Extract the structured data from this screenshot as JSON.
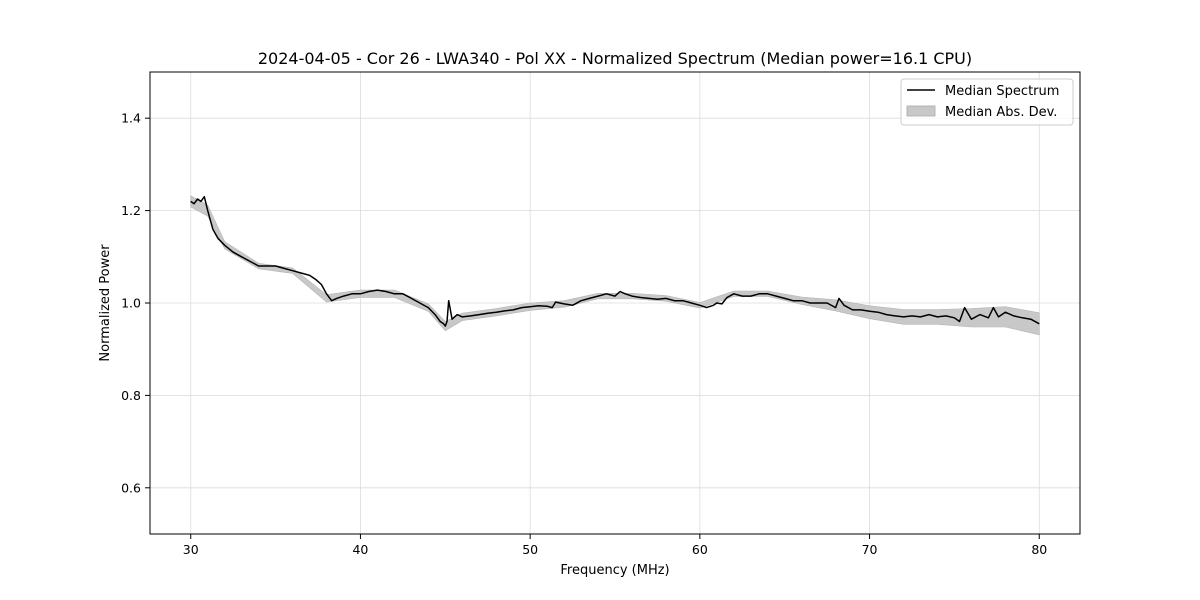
{
  "chart_data": {
    "type": "line",
    "title": "2024-04-05 - Cor 26 - LWA340 - Pol XX - Normalized Spectrum (Median power=16.1 CPU)",
    "xlabel": "Frequency (MHz)",
    "ylabel": "Normalized Power",
    "xlim": [
      27.6,
      82.4
    ],
    "ylim": [
      0.5,
      1.5
    ],
    "xticks": [
      30,
      40,
      50,
      60,
      70,
      80
    ],
    "xtick_labels": [
      "30",
      "40",
      "50",
      "60",
      "70",
      "80"
    ],
    "yticks": [
      0.6,
      0.8,
      1.0,
      1.2,
      1.4
    ],
    "ytick_labels": [
      "0.6",
      "0.8",
      "1.0",
      "1.2",
      "1.4"
    ],
    "grid": true,
    "legend_position": "top-right",
    "series": [
      {
        "name": "Median Spectrum",
        "kind": "line",
        "color": "#000000",
        "x": [
          30.0,
          30.2,
          30.4,
          30.6,
          30.8,
          31.0,
          31.3,
          31.6,
          32.0,
          32.5,
          33.0,
          33.5,
          34.0,
          34.5,
          35.0,
          35.5,
          36.0,
          36.5,
          37.0,
          37.4,
          37.7,
          38.0,
          38.3,
          38.6,
          39.0,
          39.5,
          40.0,
          40.5,
          41.0,
          41.5,
          42.0,
          42.5,
          43.0,
          43.5,
          44.0,
          44.4,
          44.7,
          44.9,
          45.0,
          45.1,
          45.2,
          45.4,
          45.7,
          46.0,
          46.5,
          47.0,
          47.5,
          48.0,
          48.5,
          49.0,
          49.5,
          50.0,
          50.5,
          51.0,
          51.3,
          51.5,
          52.0,
          52.5,
          53.0,
          53.5,
          54.0,
          54.5,
          55.0,
          55.3,
          55.6,
          56.0,
          56.5,
          57.0,
          57.5,
          58.0,
          58.5,
          59.0,
          59.5,
          60.0,
          60.4,
          60.8,
          61.0,
          61.3,
          61.6,
          62.0,
          62.5,
          63.0,
          63.5,
          64.0,
          64.5,
          65.0,
          65.5,
          66.0,
          66.5,
          67.0,
          67.5,
          68.0,
          68.2,
          68.5,
          69.0,
          69.5,
          70.0,
          70.5,
          71.0,
          71.5,
          72.0,
          72.5,
          73.0,
          73.5,
          74.0,
          74.5,
          75.0,
          75.3,
          75.6,
          76.0,
          76.5,
          77.0,
          77.3,
          77.6,
          78.0,
          78.5,
          79.0,
          79.5,
          80.0
        ],
        "y": [
          1.22,
          1.215,
          1.225,
          1.22,
          1.23,
          1.2,
          1.16,
          1.14,
          1.125,
          1.11,
          1.1,
          1.09,
          1.08,
          1.08,
          1.08,
          1.075,
          1.07,
          1.065,
          1.06,
          1.05,
          1.04,
          1.02,
          1.005,
          1.01,
          1.015,
          1.02,
          1.02,
          1.025,
          1.028,
          1.025,
          1.02,
          1.02,
          1.01,
          1.0,
          0.99,
          0.975,
          0.96,
          0.955,
          0.95,
          0.96,
          1.005,
          0.965,
          0.975,
          0.97,
          0.972,
          0.975,
          0.978,
          0.98,
          0.983,
          0.985,
          0.99,
          0.992,
          0.994,
          0.993,
          0.99,
          1.002,
          0.998,
          0.995,
          1.005,
          1.01,
          1.015,
          1.02,
          1.015,
          1.025,
          1.02,
          1.015,
          1.012,
          1.01,
          1.008,
          1.01,
          1.005,
          1.005,
          1.0,
          0.995,
          0.99,
          0.995,
          1.0,
          0.998,
          1.012,
          1.02,
          1.015,
          1.015,
          1.02,
          1.02,
          1.015,
          1.01,
          1.005,
          1.005,
          1.0,
          1.0,
          1.0,
          0.99,
          1.01,
          0.995,
          0.985,
          0.985,
          0.982,
          0.98,
          0.975,
          0.972,
          0.97,
          0.972,
          0.97,
          0.975,
          0.97,
          0.972,
          0.968,
          0.96,
          0.99,
          0.965,
          0.975,
          0.968,
          0.99,
          0.97,
          0.98,
          0.972,
          0.968,
          0.965,
          0.955
        ]
      },
      {
        "name": "Median Abs. Dev.",
        "kind": "band",
        "color": "#c8c8c8",
        "x": [
          30.0,
          31.0,
          32.0,
          34.0,
          36.0,
          38.0,
          40.0,
          42.0,
          44.0,
          45.0,
          46.0,
          48.0,
          50.0,
          52.0,
          54.0,
          56.0,
          58.0,
          60.0,
          62.0,
          64.0,
          66.0,
          68.0,
          70.0,
          72.0,
          74.0,
          76.0,
          78.0,
          80.0
        ],
        "y": [
          1.22,
          1.2,
          1.125,
          1.08,
          1.07,
          1.01,
          1.02,
          1.02,
          0.99,
          0.95,
          0.97,
          0.98,
          0.992,
          0.998,
          1.015,
          1.015,
          1.01,
          0.995,
          1.02,
          1.02,
          1.005,
          0.995,
          0.98,
          0.97,
          0.97,
          0.968,
          0.97,
          0.955
        ],
        "dev": [
          0.012,
          0.012,
          0.008,
          0.006,
          0.006,
          0.008,
          0.008,
          0.008,
          0.008,
          0.01,
          0.008,
          0.008,
          0.008,
          0.007,
          0.006,
          0.006,
          0.006,
          0.006,
          0.006,
          0.006,
          0.008,
          0.012,
          0.014,
          0.016,
          0.016,
          0.02,
          0.022,
          0.024
        ]
      }
    ]
  }
}
